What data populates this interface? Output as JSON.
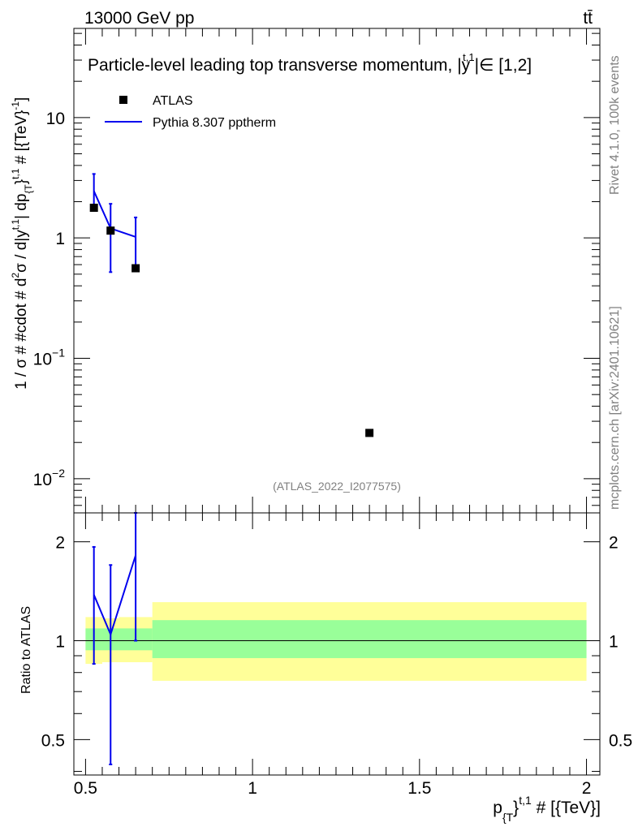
{
  "header": {
    "energy_label": "13000 GeV pp",
    "process_label": "tt̄"
  },
  "side_labels": {
    "rivet": "Rivet 4.1.0,  100k events",
    "source": "mcplots.cern.ch [arXiv:2401.10621]"
  },
  "chart_data": [
    {
      "type": "scatter",
      "panel": "main",
      "title": "Particle-level leading top transverse momentum, |y|∈ [1,2]",
      "title_parts": {
        "prefix": "Particle-level leading top transverse momentum, |",
        "var": "y",
        "sup": "t,1",
        "suffix": "|∈ [1,2]"
      },
      "watermark": "(ATLAS_2022_I2077575)",
      "yscale": "log",
      "xlim": [
        0.465,
        2.04
      ],
      "ylim": [
        0.0052,
        55
      ],
      "ylabel": {
        "a": "1 / σ # #cdot # d",
        "a_sup": "2",
        "b": "σ / d|y",
        "b_sup": "t,1",
        "c": "| dp",
        "c_sub": "{T",
        "c_sup": "}",
        "c_sup2": "t,1",
        "d": " # [{TeV}",
        "d_sup": "-1",
        "e": "]"
      },
      "yticks": [
        {
          "value": 10,
          "base": "10",
          "exp": ""
        },
        {
          "value": 1,
          "base": "1",
          "exp": ""
        },
        {
          "value": 0.1,
          "base": "10",
          "exp": "−1"
        },
        {
          "value": 0.01,
          "base": "10",
          "exp": "−2"
        }
      ],
      "legend": [
        {
          "name": "ATLAS",
          "marker": "square",
          "color": "#000000"
        },
        {
          "name": "Pythia 8.307 pptherm",
          "marker": "line",
          "color": "#0000ee"
        }
      ],
      "series": [
        {
          "name": "ATLAS",
          "points": [
            {
              "x": 0.525,
              "y": 1.78
            },
            {
              "x": 0.575,
              "y": 1.15
            },
            {
              "x": 0.65,
              "y": 0.56
            },
            {
              "x": 1.35,
              "y": 0.024
            }
          ]
        },
        {
          "name": "Pythia 8.307 pptherm",
          "color": "#0000ee",
          "points": [
            {
              "x": 0.525,
              "y": 2.45,
              "lo": 1.78,
              "hi": 3.4
            },
            {
              "x": 0.575,
              "y": 1.2,
              "lo": 0.52,
              "hi": 1.92
            },
            {
              "x": 0.65,
              "y": 1.02,
              "lo": 0.56,
              "hi": 1.48
            }
          ]
        }
      ]
    },
    {
      "type": "scatter",
      "panel": "ratio",
      "ylabel": "Ratio to ATLAS",
      "xlabel": {
        "a": "p",
        "sub": "{T",
        "sup": "}",
        "sup2": "t,1",
        "b": " # [{TeV}]"
      },
      "yscale": "log",
      "xlim": [
        0.465,
        2.04
      ],
      "ylim": [
        0.39,
        2.45
      ],
      "xticks": [
        {
          "value": 0.5,
          "label": "0.5"
        },
        {
          "value": 1,
          "label": "1"
        },
        {
          "value": 1.5,
          "label": "1.5"
        },
        {
          "value": 2,
          "label": "2"
        }
      ],
      "yticks": [
        {
          "value": 2,
          "label": "2"
        },
        {
          "value": 1,
          "label": "1"
        },
        {
          "value": 0.5,
          "label": "0.5"
        }
      ],
      "bands": [
        {
          "x0": 0.5,
          "x1": 0.55,
          "yellow": [
            0.85,
            1.18
          ],
          "green": [
            0.935,
            1.09
          ]
        },
        {
          "x0": 0.55,
          "x1": 0.6,
          "yellow": [
            0.86,
            1.17
          ],
          "green": [
            0.935,
            1.09
          ]
        },
        {
          "x0": 0.6,
          "x1": 0.7,
          "yellow": [
            0.86,
            1.18
          ],
          "green": [
            0.935,
            1.09
          ]
        },
        {
          "x0": 0.7,
          "x1": 2.0,
          "yellow": [
            0.755,
            1.31
          ],
          "green": [
            0.885,
            1.155
          ]
        }
      ],
      "series": [
        {
          "name": "Pythia 8.307 pptherm",
          "color": "#0000ee",
          "points": [
            {
              "x": 0.525,
              "y": 1.38,
              "lo": 0.85,
              "hi": 1.93
            },
            {
              "x": 0.575,
              "y": 1.045,
              "lo": 0.42,
              "hi": 1.7
            },
            {
              "x": 0.65,
              "y": 1.82,
              "lo": 1.0,
              "hi": 2.45
            }
          ]
        }
      ]
    }
  ]
}
